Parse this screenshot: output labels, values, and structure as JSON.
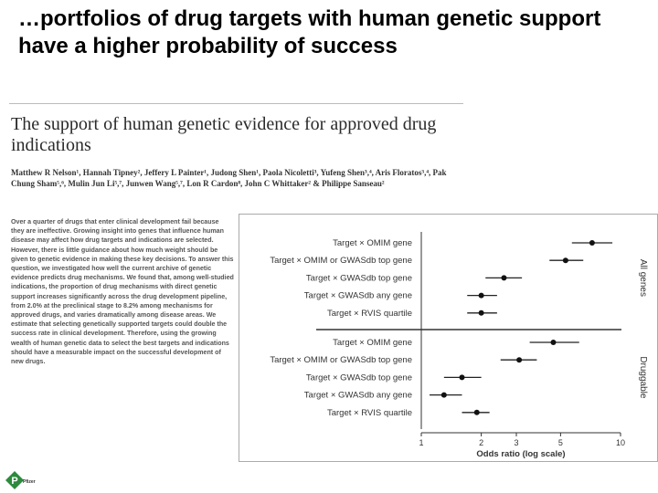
{
  "slide": {
    "title": "…portfolios of drug targets with human genetic support have a higher probability of success"
  },
  "paper": {
    "title": "The support of human genetic evidence for approved drug indications",
    "authors": "Matthew R Nelson¹, Hannah Tipney², Jeffery L Painter¹, Judong Shen¹, Paola Nicoletti³, Yufeng Shen³,⁴, Aris Floratos³,⁴, Pak Chung Sham⁵,⁶, Mulin Jun Li⁵,⁷, Junwen Wang⁵,⁷, Lon R Cardon⁸, John C Whittaker² & Philippe Sanseau²",
    "abstract": "Over a quarter of drugs that enter clinical development fail because they are ineffective. Growing insight into genes that influence human disease may affect how drug targets and indications are selected. However, there is little guidance about how much weight should be given to genetic evidence in making these key decisions. To answer this question, we investigated how well the current archive of genetic evidence predicts drug mechanisms. We found that, among well-studied indications, the proportion of drug mechanisms with direct genetic support increases significantly across the drug development pipeline, from 2.0% at the preclinical stage to 8.2% among mechanisms for approved drugs, and varies dramatically among disease areas. We estimate that selecting genetically supported targets could double the success rate in clinical development. Therefore, using the growing wealth of human genetic data to select the best targets and indications should have a measurable impact on the successful development of new drugs."
  },
  "logo": {
    "text": "Pfizer"
  },
  "chart_data": {
    "type": "scatter",
    "xlabel": "Odds ratio (log scale)",
    "xscale": "log",
    "xlim": [
      1,
      10
    ],
    "xticks": [
      1,
      2,
      3,
      5,
      10
    ],
    "panels": [
      {
        "name": "All genes",
        "rows": [
          {
            "label": "Target × OMIM gene",
            "estimate": 7.2,
            "ci": [
              5.7,
              9.1
            ]
          },
          {
            "label": "Target × OMIM or GWASdb top gene",
            "estimate": 5.3,
            "ci": [
              4.4,
              6.5
            ]
          },
          {
            "label": "Target × GWASdb top gene",
            "estimate": 2.6,
            "ci": [
              2.1,
              3.2
            ]
          },
          {
            "label": "Target × GWASdb any gene",
            "estimate": 2.0,
            "ci": [
              1.7,
              2.4
            ]
          },
          {
            "label": "Target × RVIS quartile",
            "estimate": 2.0,
            "ci": [
              1.7,
              2.4
            ]
          }
        ]
      },
      {
        "name": "Druggable",
        "rows": [
          {
            "label": "Target × OMIM gene",
            "estimate": 4.6,
            "ci": [
              3.5,
              6.2
            ]
          },
          {
            "label": "Target × OMIM or GWASdb top gene",
            "estimate": 3.1,
            "ci": [
              2.5,
              3.8
            ]
          },
          {
            "label": "Target × GWASdb top gene",
            "estimate": 1.6,
            "ci": [
              1.3,
              2.0
            ]
          },
          {
            "label": "Target × GWASdb any gene",
            "estimate": 1.3,
            "ci": [
              1.1,
              1.6
            ]
          },
          {
            "label": "Target × RVIS quartile",
            "estimate": 1.9,
            "ci": [
              1.6,
              2.2
            ]
          }
        ]
      }
    ]
  }
}
